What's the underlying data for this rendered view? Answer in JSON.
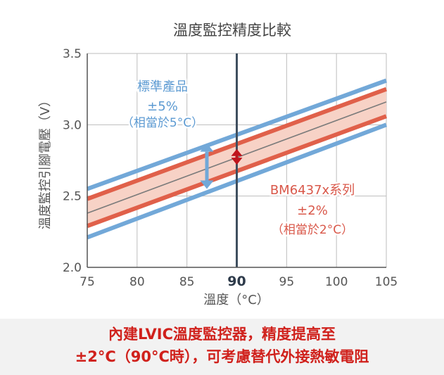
{
  "chart_data": {
    "type": "line",
    "title": "溫度監控精度比較",
    "xlabel": "溫度（°C）",
    "ylabel": "溫度監控引腳電壓（V）",
    "xlim": [
      75,
      105
    ],
    "ylim": [
      2.0,
      3.5
    ],
    "x_ticks": [
      75,
      80,
      85,
      90,
      95,
      100,
      105
    ],
    "x_tick_labels": [
      "75",
      "80",
      "85",
      "90",
      "95",
      "100",
      "105"
    ],
    "highlight_x": 90,
    "y_ticks": [
      2.0,
      2.5,
      3.0,
      3.5
    ],
    "y_tick_labels": [
      "2.0",
      "2.5",
      "3.0",
      "3.5"
    ],
    "grid": true,
    "x": [
      75,
      105
    ],
    "series": [
      {
        "role": "nominal",
        "color": "#7b7b7b",
        "values": [
          2.38,
          3.16
        ]
      },
      {
        "role": "bm6437x-upper",
        "color": "#e0604a",
        "values": [
          2.48,
          3.25
        ]
      },
      {
        "role": "bm6437x-lower",
        "color": "#e0604a",
        "values": [
          2.29,
          3.06
        ]
      },
      {
        "role": "standard-upper",
        "color": "#72a8d8",
        "values": [
          2.55,
          3.31
        ]
      },
      {
        "role": "standard-lower",
        "color": "#72a8d8",
        "values": [
          2.21,
          3.0
        ]
      }
    ],
    "band_fill": "#f7d2c6",
    "annotations": {
      "standard": {
        "lines": [
          "標準產品",
          "±5%",
          "（相當於5°C）"
        ],
        "color": "#5c9ad2"
      },
      "bm6437x": {
        "lines": [
          "BM6437x系列",
          "±2%",
          "（相當於2°C）"
        ],
        "color": "#d9584a"
      }
    },
    "arrows": {
      "standard": {
        "x": 87,
        "from": 2.55,
        "to": 2.87,
        "color": "#72a8d8"
      },
      "bm6437x": {
        "x": 90,
        "from": 2.72,
        "to": 2.83,
        "color": "#c0141c"
      }
    }
  },
  "footer": {
    "line1": "內建LVIC溫度監控器，精度提高至",
    "line2": "±2°C（90°C時），可考慮替代外接熱敏電阻",
    "color": "#d0211c"
  }
}
